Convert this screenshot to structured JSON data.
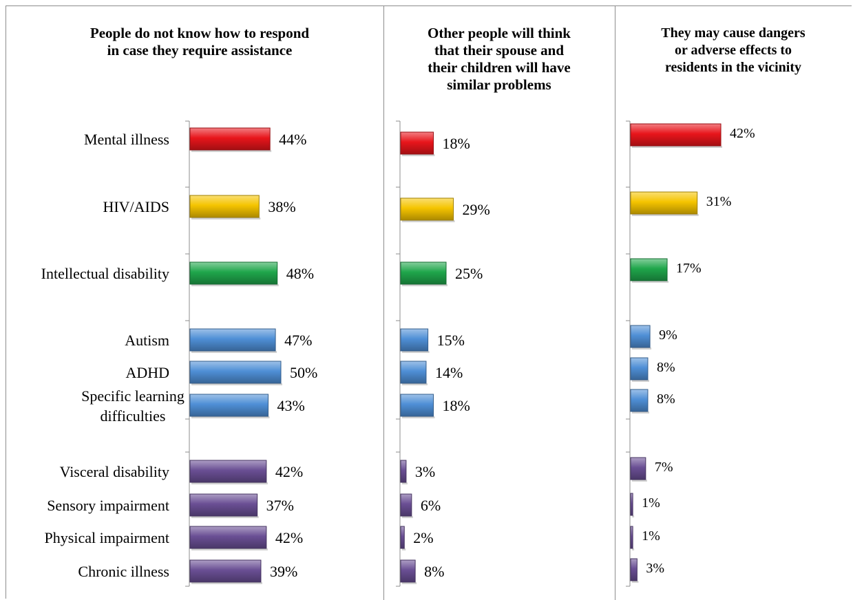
{
  "chart_data": [
    {
      "type": "bar",
      "orientation": "horizontal",
      "title": "People do not know how to respond in case they require assistance",
      "categories": [
        "Mental illness",
        "HIV/AIDS",
        "Intellectual disability",
        "Autism",
        "ADHD",
        "Specific learning difficulties",
        "Visceral disability",
        "Sensory impairment",
        "Physical impairment",
        "Chronic illness"
      ],
      "values": [
        44,
        38,
        48,
        47,
        50,
        43,
        42,
        37,
        42,
        39
      ],
      "value_labels": [
        "44%",
        "38%",
        "48%",
        "47%",
        "50%",
        "43%",
        "42%",
        "37%",
        "42%",
        "39%"
      ],
      "unit": "%"
    },
    {
      "type": "bar",
      "orientation": "horizontal",
      "title": "Other people will think that their spouse and their children will have similar problems",
      "categories": [
        "Mental illness",
        "HIV/AIDS",
        "Intellectual disability",
        "Autism",
        "ADHD",
        "Specific learning difficulties",
        "Visceral disability",
        "Sensory impairment",
        "Physical impairment",
        "Chronic illness"
      ],
      "values": [
        18,
        29,
        25,
        15,
        14,
        18,
        3,
        6,
        2,
        8
      ],
      "value_labels": [
        "18%",
        "29%",
        "25%",
        "15%",
        "14%",
        "18%",
        "3%",
        "6%",
        "2%",
        "8%"
      ],
      "unit": "%"
    },
    {
      "type": "bar",
      "orientation": "horizontal",
      "title": "They may cause dangers or adverse effects to residents in the vicinity",
      "categories": [
        "Mental illness",
        "HIV/AIDS",
        "Intellectual disability",
        "Autism",
        "ADHD",
        "Specific learning difficulties",
        "Visceral disability",
        "Sensory impairment",
        "Physical impairment",
        "Chronic illness"
      ],
      "values": [
        42,
        31,
        17,
        9,
        8,
        8,
        7,
        1,
        1,
        3
      ],
      "value_labels": [
        "42%",
        "31%",
        "17%",
        "9%",
        "8%",
        "8%",
        "7%",
        "1%",
        "1%",
        "3%"
      ],
      "unit": "%"
    }
  ],
  "category_display_lines": [
    [
      "Mental illness"
    ],
    [
      "HIV/AIDS"
    ],
    [
      "Intellectual disability"
    ],
    [
      "Autism"
    ],
    [
      "ADHD"
    ],
    [
      "Specific learning",
      "difficulties"
    ],
    [
      "Visceral disability"
    ],
    [
      "Sensory impairment"
    ],
    [
      "Physical impairment"
    ],
    [
      "Chronic illness"
    ]
  ],
  "title_lines": [
    [
      "People do not know how to respond",
      "in case they require assistance"
    ],
    [
      "Other people will think",
      "that their spouse and",
      "their children will have",
      "similar problems"
    ],
    [
      "They may cause dangers",
      "or adverse effects to",
      "residents in the vicinity"
    ]
  ],
  "colors": {
    "mental_illness": "#e8151b",
    "hiv_aids": "#f5c400",
    "intellectual_disability": "#1fa64b",
    "developmental": "#4f8fd6",
    "physical": "#6a4f94"
  }
}
